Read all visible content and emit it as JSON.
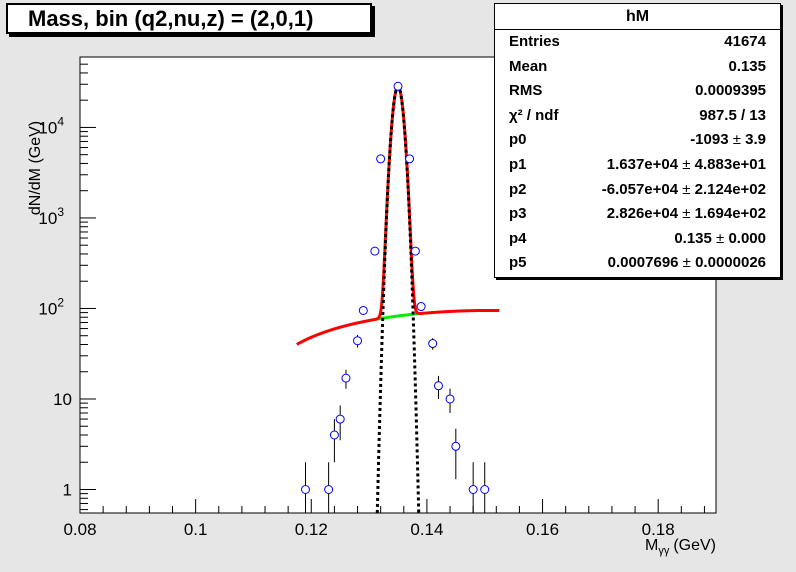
{
  "title": "Mass, bin (q2,nu,z) = (2,0,1)",
  "stats": {
    "name": "hM",
    "rows": [
      {
        "key": "Entries",
        "value": "41674"
      },
      {
        "key": "Mean",
        "value": "0.135"
      },
      {
        "key": "RMS",
        "value": "0.0009395"
      },
      {
        "key": "χ² / ndf",
        "value": "987.5 / 13"
      },
      {
        "key": "p0",
        "value": "-1093",
        "err": "3.9"
      },
      {
        "key": "p1",
        "value": "1.637e+04",
        "err": "4.883e+01"
      },
      {
        "key": "p2",
        "value": "-6.057e+04",
        "err": "2.124e+02"
      },
      {
        "key": "p3",
        "value": "2.826e+04",
        "err": "1.694e+02"
      },
      {
        "key": "p4",
        "value": "0.135",
        "err": "0.000"
      },
      {
        "key": "p5",
        "value": "0.0007696",
        "err": "0.0000026"
      }
    ]
  },
  "chart_data": {
    "type": "scatter",
    "title": "Mass, bin (q2,nu,z) = (2,0,1)",
    "xlabel": "M",
    "xlabel_sub": "γγ",
    "xlabel_unit": "(GeV)",
    "ylabel": "dN/dM (GeV)",
    "xlim": [
      0.08,
      0.19
    ],
    "ylim": [
      0.55,
      60000
    ],
    "yscale": "log",
    "xticks": [
      0.08,
      0.1,
      0.12,
      0.14,
      0.16,
      0.18
    ],
    "xtick_labels": [
      "0.08",
      "0.1",
      "0.12",
      "0.14",
      "0.16",
      "0.18"
    ],
    "yticks": [
      {
        "value": 1,
        "label": "1"
      },
      {
        "value": 10,
        "label": "10"
      },
      {
        "value": 100,
        "label": "10",
        "exp": "2"
      },
      {
        "value": 1000,
        "label": "10",
        "exp": "3"
      },
      {
        "value": 10000,
        "label": "10",
        "exp": "4"
      }
    ],
    "points": [
      {
        "x": 0.119,
        "y": 1,
        "lo": 0.55,
        "hi": 2.0
      },
      {
        "x": 0.123,
        "y": 1,
        "lo": 0.55,
        "hi": 2.0
      },
      {
        "x": 0.124,
        "y": 4,
        "lo": 2.0,
        "hi": 6.0
      },
      {
        "x": 0.125,
        "y": 6,
        "lo": 3.5,
        "hi": 8.5
      },
      {
        "x": 0.126,
        "y": 17,
        "lo": 13,
        "hi": 21
      },
      {
        "x": 0.128,
        "y": 44,
        "lo": 37,
        "hi": 51
      },
      {
        "x": 0.129,
        "y": 95,
        "lo": 85,
        "hi": 105
      },
      {
        "x": 0.131,
        "y": 430,
        "lo": 410,
        "hi": 450
      },
      {
        "x": 0.132,
        "y": 4500,
        "lo": 4430,
        "hi": 4570
      },
      {
        "x": 0.135,
        "y": 28500,
        "lo": 28300,
        "hi": 28700
      },
      {
        "x": 0.137,
        "y": 4500,
        "lo": 4430,
        "hi": 4570
      },
      {
        "x": 0.138,
        "y": 430,
        "lo": 410,
        "hi": 450
      },
      {
        "x": 0.139,
        "y": 105,
        "lo": 95,
        "hi": 115
      },
      {
        "x": 0.141,
        "y": 41,
        "lo": 35,
        "hi": 47
      },
      {
        "x": 0.142,
        "y": 14,
        "lo": 10,
        "hi": 18
      },
      {
        "x": 0.144,
        "y": 10,
        "lo": 7,
        "hi": 13
      },
      {
        "x": 0.145,
        "y": 3,
        "lo": 1.3,
        "hi": 4.7
      },
      {
        "x": 0.148,
        "y": 1,
        "lo": 0.55,
        "hi": 2.0
      },
      {
        "x": 0.15,
        "y": 1,
        "lo": 0.55,
        "hi": 2.0
      }
    ],
    "fit": {
      "p0": -1093,
      "p1": 16370,
      "p2": -60570,
      "p3": 28260,
      "p4": 0.135,
      "p5": 0.0007696,
      "total_color": "#ff0000",
      "background_color": "#00ee00",
      "signal_color": "#000000",
      "marker_color": "#0000ff"
    }
  }
}
